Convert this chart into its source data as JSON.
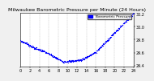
{
  "title": "Milwaukee Barometric Pressure per Minute (24 Hours)",
  "background_color": "#f0f0f0",
  "plot_bg_color": "#ffffff",
  "dot_color": "#0000ff",
  "dot_size": 0.8,
  "legend_label": "Barometric Pressure",
  "legend_color": "#0000ff",
  "ylim": [
    29.38,
    30.22
  ],
  "xlim": [
    0,
    1440
  ],
  "xtick_positions": [
    0,
    120,
    240,
    360,
    480,
    600,
    720,
    840,
    960,
    1080,
    1200,
    1320,
    1440
  ],
  "xtick_labels": [
    "0",
    "2",
    "4",
    "6",
    "8",
    "10",
    "12",
    "14",
    "16",
    "18",
    "20",
    "22",
    "24"
  ],
  "ytick_positions": [
    29.4,
    29.6,
    29.8,
    30.0,
    30.2
  ],
  "ytick_labels": [
    "29.4",
    "29.6",
    "29.8",
    "30.0",
    "30.2"
  ],
  "grid_color": "#aaaaaa",
  "grid_style": "--",
  "title_fontsize": 4.5,
  "tick_fontsize": 3.5,
  "legend_fontsize": 3.2
}
